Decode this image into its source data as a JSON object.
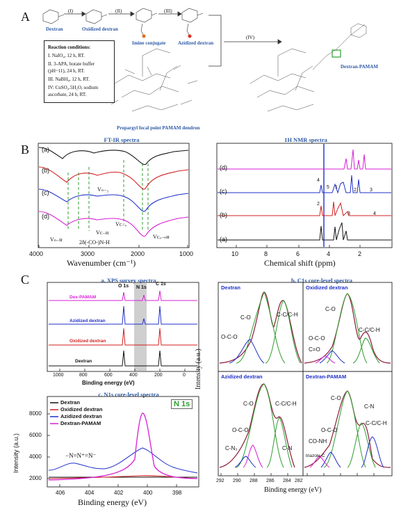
{
  "panels": {
    "A": "A",
    "B": "B",
    "C": "C"
  },
  "scheme": {
    "steps": [
      "(I)",
      "(II)",
      "(III)",
      "(IV)"
    ],
    "compounds": [
      "Dextran",
      "Oxidized dextran",
      "Imine conjugate",
      "Azidized dextran",
      "Propargyl focal point PAMAM dendron",
      "Dextran-PAMAM"
    ],
    "conditions_title": "Reaction conditions:",
    "conditions": [
      "I. NaIO₄, 12 h, RT.",
      "II. 3-APA, borate buffer (pH~11), 24 h, RT.",
      "III. NaBH₄, 12 h, RT.",
      "IV: CuSO₄.5H₂O, sodium ascorbate, 24 h, RT."
    ]
  },
  "ftir": {
    "title": "FT-IR spectra",
    "xlabel": "Wavenumber (cm⁻¹)",
    "xticks": [
      "4000",
      "3000",
      "2000",
      "1000"
    ],
    "traces": [
      "(a)",
      "(b)",
      "(c)",
      "(d)"
    ],
    "annotations": [
      "Vₙ₋₃",
      "Vₙ₋ʜ",
      "2δ(-CO-)N-H",
      "Vᴄ₋ʜ",
      "Vᴄ₋ₒ",
      "Vᴄₒ₋ₙʜ"
    ]
  },
  "nmr": {
    "title": "1H NMR spectra",
    "xlabel": "Chemical shift (ppm)",
    "xticks": [
      "10",
      "8",
      "6",
      "4",
      "2"
    ],
    "traces": [
      "(a)",
      "(b)",
      "(c)",
      "(d)"
    ],
    "peak_labels": [
      "4",
      "5",
      "1",
      "2",
      "3",
      "4",
      "5",
      "2",
      "3"
    ]
  },
  "xps_survey": {
    "title": "a. XPS survey spectra",
    "xlabel": "Binding energy (eV)",
    "xticks": [
      "1000",
      "800",
      "600",
      "400",
      "200",
      "0"
    ],
    "peaks": [
      "O 1s",
      "N 1s",
      "C 1s"
    ],
    "traces": [
      "Dex-PAMAM",
      "Azidized dextran",
      "Oxidized dextran",
      "Dextran"
    ]
  },
  "c1s": {
    "title": "b. C1s core-level spectra",
    "ylabel": "Intensity (a.u.)",
    "xlabel": "Binding energy (eV)",
    "xticks": [
      "292",
      "290",
      "288",
      "286",
      "284",
      "282"
    ],
    "subpanels": [
      {
        "name": "Dextran",
        "labels": [
          "C-O",
          "O-C-O",
          "C-C/C-H"
        ]
      },
      {
        "name": "Oxidized dextran",
        "labels": [
          "C-O",
          "O-C-O",
          "C=O",
          "C-C/C-H"
        ]
      },
      {
        "name": "Azidized dextran",
        "labels": [
          "C-O",
          "O-C-O",
          "C-N₃",
          "C-C/C-H",
          "C-N"
        ]
      },
      {
        "name": "Dextran-PAMAM",
        "labels": [
          "C-O",
          "O-C-O",
          "CO-NH",
          "triazole C",
          "C-N",
          "C-C/C-H"
        ]
      }
    ]
  },
  "n1s": {
    "title": "c. N1s core-level spectra",
    "badge": "N 1s",
    "ylabel": "Intensity (a.u.)",
    "xlabel": "Binding energy (eV)",
    "xticks": [
      "406",
      "404",
      "402",
      "400",
      "398"
    ],
    "yticks": [
      "8000",
      "6000",
      "4000",
      "2000"
    ],
    "annotation": "−N=N⁺=N⁻",
    "legend": [
      {
        "name": "Dextran",
        "color": "#111111"
      },
      {
        "name": "Oxidized dextran",
        "color": "#d11f1f"
      },
      {
        "name": "Azidized dextran",
        "color": "#1f2fc8"
      },
      {
        "name": "Dextran-PAMAM",
        "color": "#d61fd6"
      }
    ]
  },
  "colors": {
    "black": "#111111",
    "red": "#d11f1f",
    "blue": "#1f2fc8",
    "magenta": "#d61fd6",
    "green": "#2e9d2e",
    "title_blue": "#2e5aa6"
  }
}
